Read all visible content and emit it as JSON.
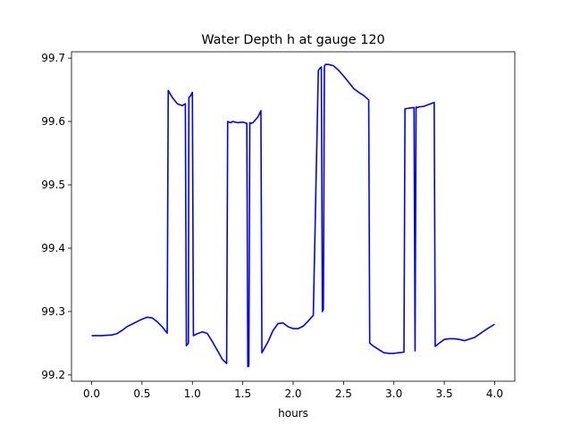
{
  "chart_data": {
    "type": "line",
    "title": "Water Depth h at gauge 120",
    "xlabel": "hours",
    "ylabel": "",
    "xlim": [
      -0.2,
      4.2
    ],
    "ylim": [
      99.19,
      99.71
    ],
    "xticks": [
      0.0,
      0.5,
      1.0,
      1.5,
      2.0,
      2.5,
      3.0,
      3.5,
      4.0
    ],
    "xtick_labels": [
      "0.0",
      "0.5",
      "1.0",
      "1.5",
      "2.0",
      "2.5",
      "3.0",
      "3.5",
      "4.0"
    ],
    "yticks": [
      99.2,
      99.3,
      99.4,
      99.5,
      99.6,
      99.7
    ],
    "ytick_labels": [
      "99.2",
      "99.3",
      "99.4",
      "99.5",
      "99.6",
      "99.7"
    ],
    "grid": false,
    "legend": "none",
    "series": [
      {
        "color": "#0000ff",
        "x": [
          0.0,
          0.1,
          0.2,
          0.25,
          0.3,
          0.35,
          0.4,
          0.5,
          0.55,
          0.6,
          0.65,
          0.7,
          0.75,
          0.76,
          0.8,
          0.85,
          0.9,
          0.93,
          0.94,
          0.96,
          0.965,
          0.98,
          1.0,
          1.01,
          1.05,
          1.1,
          1.15,
          1.2,
          1.25,
          1.3,
          1.34,
          1.35,
          1.38,
          1.4,
          1.45,
          1.5,
          1.54,
          1.55,
          1.56,
          1.57,
          1.58,
          1.6,
          1.65,
          1.68,
          1.69,
          1.75,
          1.8,
          1.85,
          1.9,
          1.95,
          2.0,
          2.05,
          2.1,
          2.15,
          2.2,
          2.25,
          2.26,
          2.28,
          2.29,
          2.3,
          2.31,
          2.32,
          2.35,
          2.4,
          2.45,
          2.5,
          2.55,
          2.6,
          2.65,
          2.7,
          2.75,
          2.76,
          2.8,
          2.85,
          2.9,
          2.95,
          3.0,
          3.05,
          3.1,
          3.11,
          3.15,
          3.2,
          3.21,
          3.22,
          3.23,
          3.25,
          3.3,
          3.35,
          3.4,
          3.41,
          3.45,
          3.5,
          3.55,
          3.6,
          3.65,
          3.7,
          3.8,
          3.9,
          4.0
        ],
        "y": [
          99.262,
          99.262,
          99.263,
          99.265,
          99.27,
          99.276,
          99.28,
          99.288,
          99.291,
          99.29,
          99.284,
          99.276,
          99.266,
          99.649,
          99.638,
          99.628,
          99.625,
          99.628,
          99.246,
          99.25,
          99.638,
          99.64,
          99.646,
          99.262,
          99.265,
          99.268,
          99.265,
          99.252,
          99.238,
          99.224,
          99.218,
          99.6,
          99.598,
          99.6,
          99.598,
          99.599,
          99.597,
          99.213,
          99.214,
          99.598,
          99.597,
          99.598,
          99.607,
          99.617,
          99.235,
          99.252,
          99.27,
          99.281,
          99.282,
          99.276,
          99.273,
          99.273,
          99.277,
          99.285,
          99.294,
          99.68,
          99.683,
          99.686,
          99.3,
          99.303,
          99.687,
          99.69,
          99.69,
          99.688,
          99.681,
          99.672,
          99.662,
          99.652,
          99.646,
          99.641,
          99.634,
          99.25,
          99.245,
          99.24,
          99.235,
          99.234,
          99.234,
          99.235,
          99.236,
          99.62,
          99.621,
          99.622,
          99.238,
          99.623,
          99.622,
          99.623,
          99.624,
          99.627,
          99.63,
          99.245,
          99.25,
          99.256,
          99.257,
          99.257,
          99.256,
          99.254,
          99.259,
          99.27,
          99.28
        ]
      }
    ]
  }
}
